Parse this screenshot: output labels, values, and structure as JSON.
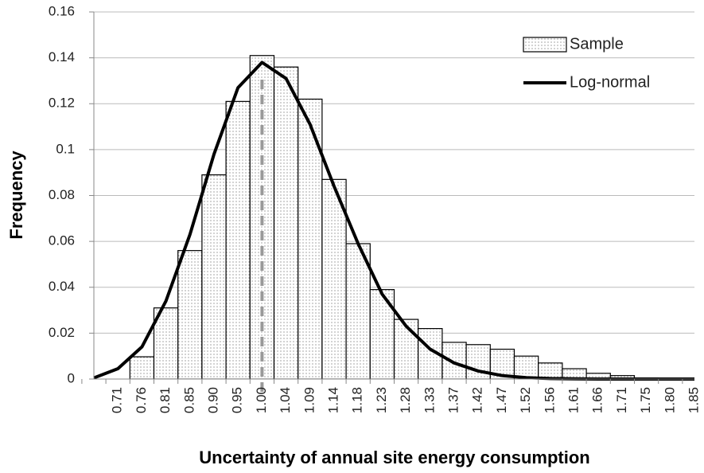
{
  "chart_data": {
    "type": "bar",
    "x_label": "Uncertainty of annual site energy consumption",
    "y_label": "Frequency",
    "categories": [
      null,
      "0.71",
      "0.76",
      "0.81",
      "0.85",
      "0.90",
      "0.95",
      "1.00",
      "1.04",
      "1.09",
      "1.14",
      "1.18",
      "1.23",
      "1.28",
      "1.33",
      "1.37",
      "1.42",
      "1.47",
      "1.52",
      "1.56",
      "1.61",
      "1.66",
      "1.71",
      "1.75",
      "1.80",
      "1.85"
    ],
    "series": [
      {
        "name": "Sample",
        "type": "bar",
        "color": "#000000",
        "values": [
          0,
          0,
          0.0097,
          0.031,
          0.056,
          0.089,
          0.121,
          0.141,
          0.136,
          0.122,
          0.087,
          0.059,
          0.039,
          0.026,
          0.022,
          0.016,
          0.015,
          0.013,
          0.01,
          0.007,
          0.0045,
          0.0025,
          0.0015,
          0.0005,
          0.0003,
          0.0002
        ]
      },
      {
        "name": "Log-normal",
        "type": "line",
        "color": "#000000",
        "values": [
          0.0005,
          0.0045,
          0.014,
          0.034,
          0.063,
          0.098,
          0.127,
          0.138,
          0.131,
          0.111,
          0.084,
          0.059,
          0.037,
          0.023,
          0.013,
          0.007,
          0.0035,
          0.0015,
          0.0006,
          0.0002,
          0.0001,
          0,
          0,
          0,
          0,
          0
        ]
      }
    ],
    "reference_line": {
      "category": "1.00",
      "color": "#999999"
    },
    "ylim": [
      0,
      0.16
    ],
    "yticks": [
      0,
      0.02,
      0.04,
      0.06,
      0.08,
      0.1,
      0.12,
      0.14,
      0.16
    ],
    "grid": true,
    "legend": "top-right"
  }
}
